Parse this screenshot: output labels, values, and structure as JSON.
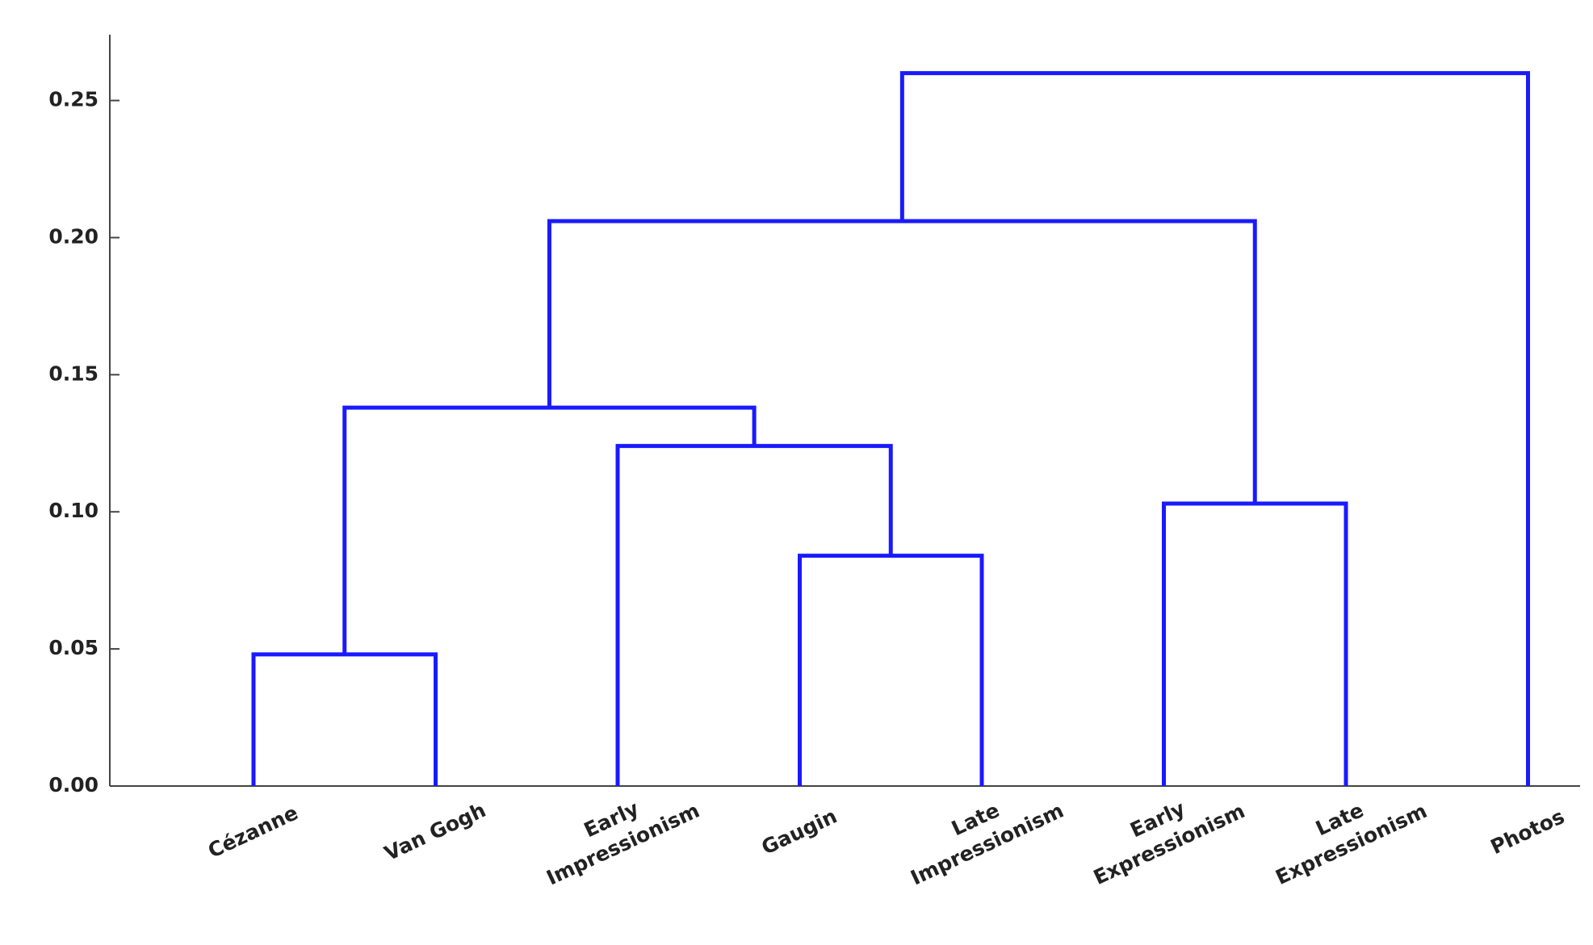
{
  "chart_data": {
    "type": "dendrogram",
    "color": "#1a1aff",
    "ylim": [
      0,
      0.274
    ],
    "yticks": [
      {
        "value": 0,
        "label": "0.00"
      },
      0.05,
      {
        "value": 0.1,
        "label": "0.10"
      },
      0.15,
      {
        "value": 0.2,
        "label": "0.20"
      },
      0.25
    ],
    "tree": {
      "height": 0.26,
      "children": [
        {
          "height": 0.206,
          "children": [
            {
              "height": 0.138,
              "children": [
                {
                  "height": 0.048,
                  "children": [
                    {
                      "label": [
                        "Cézanne"
                      ]
                    },
                    {
                      "label": [
                        "Van Gogh"
                      ]
                    }
                  ]
                },
                {
                  "height": 0.124,
                  "children": [
                    {
                      "label": [
                        "Early",
                        "Impressionism"
                      ]
                    },
                    {
                      "height": 0.084,
                      "children": [
                        {
                          "label": [
                            "Gaugin"
                          ]
                        },
                        {
                          "label": [
                            "Late",
                            "Impressionism"
                          ]
                        }
                      ]
                    }
                  ]
                }
              ]
            },
            {
              "height": 0.103,
              "children": [
                {
                  "label": [
                    "Early",
                    "Expressionism"
                  ]
                },
                {
                  "label": [
                    "Late",
                    "Expressionism"
                  ]
                }
              ]
            }
          ]
        },
        {
          "label": [
            "Photos"
          ]
        }
      ]
    }
  }
}
